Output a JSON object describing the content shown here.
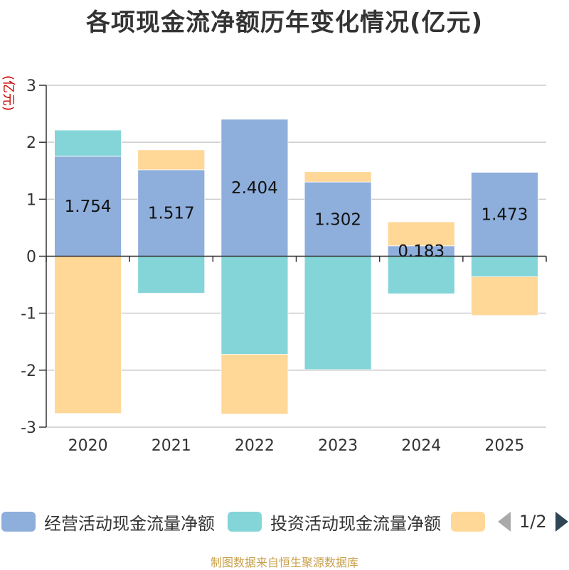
{
  "chart_data": {
    "type": "bar",
    "stacked": true,
    "title": "各项现金流净额历年变化情况(亿元)",
    "ylabel": "(亿元)",
    "categories": [
      "2020",
      "2021",
      "2022",
      "2023",
      "2024",
      "2025"
    ],
    "ylim": [
      -3,
      3
    ],
    "yticks": [
      3,
      2,
      1,
      0,
      -1,
      -2,
      -3
    ],
    "grid": true,
    "series": [
      {
        "name": "经营活动现金流量净额",
        "color": "#8eaedb",
        "values": [
          1.754,
          1.517,
          2.404,
          1.302,
          0.183,
          1.473
        ],
        "labels": [
          "1.754",
          "1.517",
          "2.404",
          "1.302",
          "0.183",
          "1.473"
        ]
      },
      {
        "name": "投资活动现金流量净额",
        "color": "#84d5d8",
        "values": [
          0.46,
          -0.65,
          -1.72,
          -1.99,
          -0.66,
          -0.36
        ]
      },
      {
        "name": "",
        "color": "#ffd797",
        "values": [
          -2.76,
          0.35,
          -1.05,
          0.18,
          0.42,
          -0.68
        ]
      }
    ],
    "legend_position": "bottom"
  },
  "legend": {
    "items": [
      {
        "label": "经营活动现金流量净额",
        "color": "#8eaedb"
      },
      {
        "label": "投资活动现金流量净额",
        "color": "#84d5d8"
      },
      {
        "label": "",
        "color": "#ffd797"
      }
    ],
    "page_text": "1/2"
  },
  "source": "制图数据来自恒生聚源数据库"
}
